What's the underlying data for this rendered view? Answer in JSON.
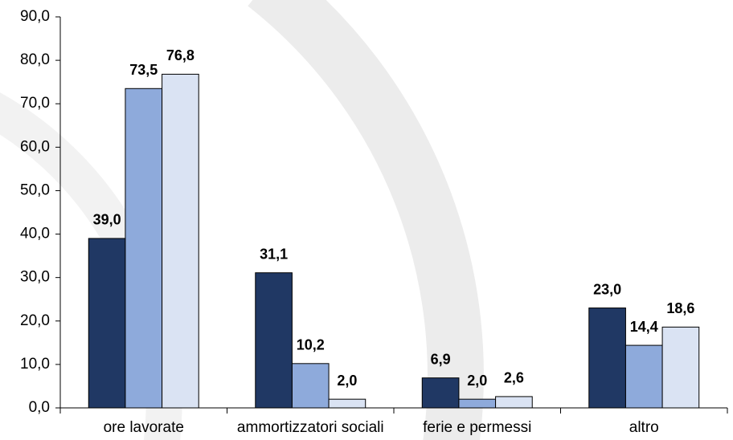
{
  "chart_data": {
    "type": "bar",
    "categories": [
      "ore lavorate",
      "ammortizzatori sociali",
      "ferie e permessi",
      "altro"
    ],
    "series": [
      {
        "color": "#203864",
        "values": [
          39.0,
          31.1,
          6.9,
          23.0
        ],
        "value_labels": [
          "39,0",
          "31,1",
          "6,9",
          "23,0"
        ]
      },
      {
        "color": "#8eaadb",
        "values": [
          73.5,
          10.2,
          2.0,
          14.4
        ],
        "value_labels": [
          "73,5",
          "10,2",
          "2,0",
          "14,4"
        ]
      },
      {
        "color": "#dae3f3",
        "values": [
          76.8,
          2.0,
          2.6,
          18.6
        ],
        "value_labels": [
          "76,8",
          "2,0",
          "2,6",
          "18,6"
        ]
      }
    ],
    "ylim": [
      0,
      90
    ],
    "yticks": [
      {
        "value": 0,
        "label": "0,0"
      },
      {
        "value": 10,
        "label": "10,0"
      },
      {
        "value": 20,
        "label": "20,0"
      },
      {
        "value": 30,
        "label": "30,0"
      },
      {
        "value": 40,
        "label": "40,0"
      },
      {
        "value": 50,
        "label": "50,0"
      },
      {
        "value": 60,
        "label": "60,0"
      },
      {
        "value": 70,
        "label": "70,0"
      },
      {
        "value": 80,
        "label": "80,0"
      },
      {
        "value": 90,
        "label": "90,0"
      }
    ],
    "grid": false
  }
}
